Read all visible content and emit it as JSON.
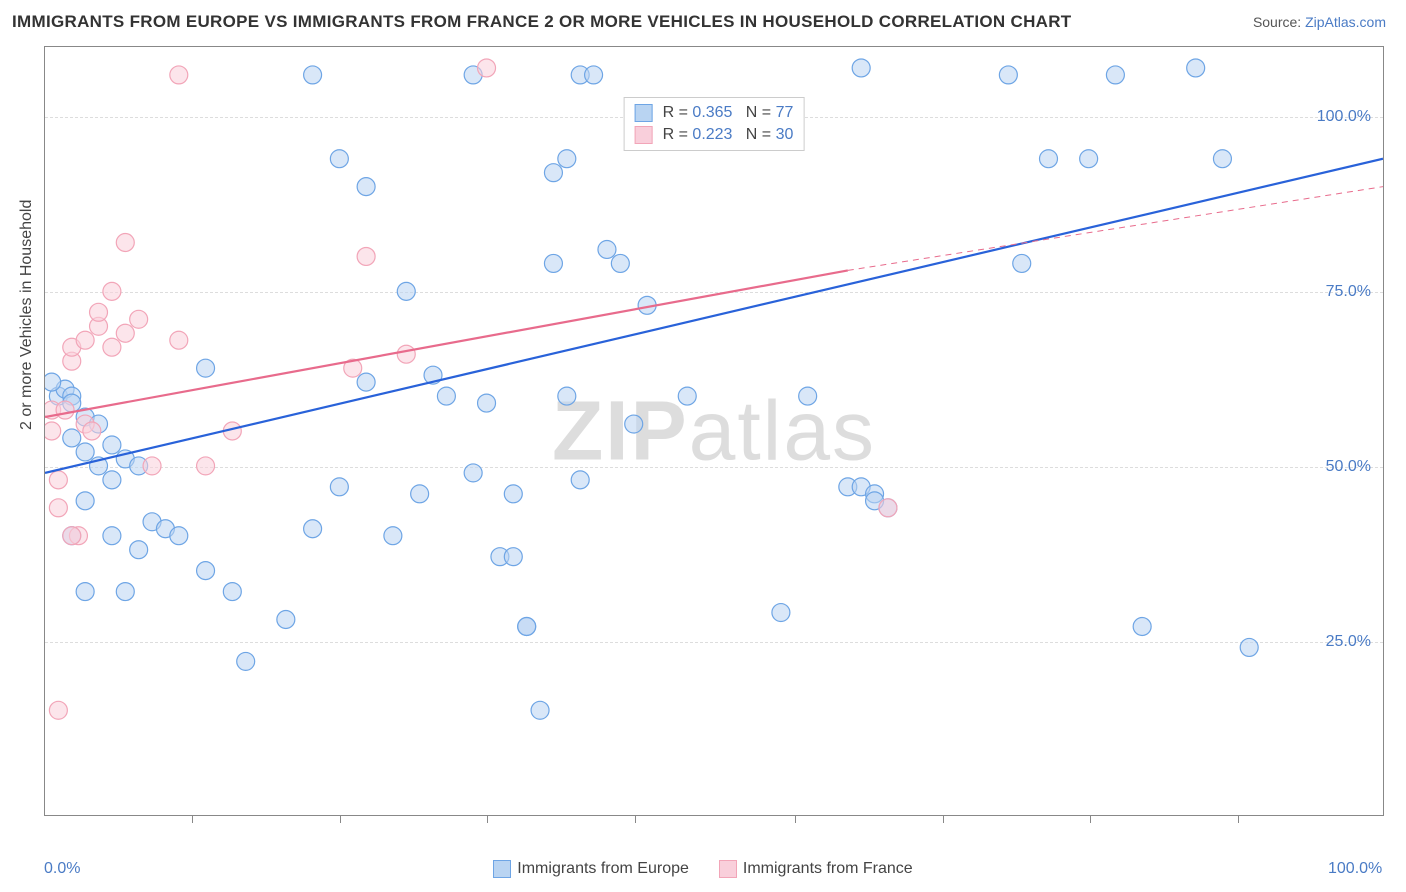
{
  "title": "IMMIGRANTS FROM EUROPE VS IMMIGRANTS FROM FRANCE 2 OR MORE VEHICLES IN HOUSEHOLD CORRELATION CHART",
  "source_label": "Source: ",
  "source_name": "ZipAtlas.com",
  "ylabel": "2 or more Vehicles in Household",
  "watermark": "ZIPatlas",
  "chart": {
    "xlim": [
      0,
      100
    ],
    "ylim": [
      0,
      110
    ],
    "yticks": [
      {
        "v": 25,
        "label": "25.0%"
      },
      {
        "v": 50,
        "label": "50.0%"
      },
      {
        "v": 75,
        "label": "75.0%"
      },
      {
        "v": 100,
        "label": "100.0%"
      }
    ],
    "xticks": [
      {
        "v": 0,
        "label": "0.0%"
      },
      {
        "v": 100,
        "label": "100.0%"
      }
    ],
    "xtick_minor": [
      11,
      22,
      33,
      44,
      56,
      67,
      78,
      89
    ],
    "grid_color": "#dddddd",
    "background": "#ffffff",
    "point_radius": 9,
    "point_opacity": 0.55,
    "line_width": 2.2,
    "series": [
      {
        "name": "Immigrants from Europe",
        "color": "#6ea5e5",
        "line_color": "#2962d9",
        "fill": "#b9d4f2",
        "R": "0.365",
        "N": "77",
        "trend": {
          "x1": 0,
          "y1": 49,
          "x2": 100,
          "y2": 94
        },
        "points": [
          [
            1,
            60
          ],
          [
            1.5,
            61
          ],
          [
            2,
            60
          ],
          [
            2,
            59
          ],
          [
            0.5,
            62
          ],
          [
            2,
            54
          ],
          [
            3,
            52
          ],
          [
            3,
            57
          ],
          [
            4,
            56
          ],
          [
            5,
            53
          ],
          [
            4,
            50
          ],
          [
            6,
            51
          ],
          [
            7,
            50
          ],
          [
            5,
            48
          ],
          [
            3,
            45
          ],
          [
            5,
            40
          ],
          [
            8,
            42
          ],
          [
            7,
            38
          ],
          [
            9,
            41
          ],
          [
            10,
            40
          ],
          [
            2,
            40
          ],
          [
            3,
            32
          ],
          [
            6,
            32
          ],
          [
            12,
            35
          ],
          [
            14,
            32
          ],
          [
            15,
            22
          ],
          [
            18,
            28
          ],
          [
            20,
            41
          ],
          [
            22,
            47
          ],
          [
            24,
            62
          ],
          [
            26,
            40
          ],
          [
            28,
            46
          ],
          [
            27,
            75
          ],
          [
            29,
            63
          ],
          [
            30,
            60
          ],
          [
            32,
            49
          ],
          [
            33,
            59
          ],
          [
            34,
            37
          ],
          [
            35,
            46
          ],
          [
            36,
            27
          ],
          [
            37,
            15
          ],
          [
            38,
            79
          ],
          [
            39,
            60
          ],
          [
            40,
            48
          ],
          [
            38,
            92
          ],
          [
            39,
            94
          ],
          [
            32,
            106
          ],
          [
            40,
            106
          ],
          [
            41,
            106
          ],
          [
            42,
            81
          ],
          [
            35,
            37
          ],
          [
            36,
            27
          ],
          [
            20,
            106
          ],
          [
            22,
            94
          ],
          [
            24,
            90
          ],
          [
            43,
            79
          ],
          [
            44,
            56
          ],
          [
            45,
            73
          ],
          [
            48,
            60
          ],
          [
            55,
            29
          ],
          [
            57,
            60
          ],
          [
            60,
            47
          ],
          [
            61,
            107
          ],
          [
            61,
            47
          ],
          [
            62,
            46
          ],
          [
            63,
            44
          ],
          [
            72,
            106
          ],
          [
            73,
            79
          ],
          [
            75,
            94
          ],
          [
            78,
            94
          ],
          [
            80,
            106
          ],
          [
            82,
            27
          ],
          [
            86,
            107
          ],
          [
            88,
            94
          ],
          [
            90,
            24
          ],
          [
            62,
            45
          ],
          [
            12,
            64
          ]
        ]
      },
      {
        "name": "Immigrants from France",
        "color": "#f2a5b8",
        "line_color": "#e86b8c",
        "fill": "#f9cfdb",
        "R": "0.223",
        "N": "30",
        "trend": {
          "x1": 0,
          "y1": 57,
          "x2": 60,
          "y2": 78
        },
        "trend_ext": {
          "x1": 60,
          "y1": 78,
          "x2": 100,
          "y2": 90
        },
        "points": [
          [
            0.5,
            55
          ],
          [
            0.5,
            58
          ],
          [
            1,
            48
          ],
          [
            1,
            44
          ],
          [
            1.5,
            58
          ],
          [
            2,
            65
          ],
          [
            2,
            67
          ],
          [
            2.5,
            40
          ],
          [
            3,
            56
          ],
          [
            3,
            68
          ],
          [
            3.5,
            55
          ],
          [
            4,
            70
          ],
          [
            4,
            72
          ],
          [
            5,
            67
          ],
          [
            5,
            75
          ],
          [
            6,
            69
          ],
          [
            6,
            82
          ],
          [
            7,
            71
          ],
          [
            8,
            50
          ],
          [
            10,
            106
          ],
          [
            10,
            68
          ],
          [
            12,
            50
          ],
          [
            14,
            55
          ],
          [
            1,
            15
          ],
          [
            2,
            40
          ],
          [
            23,
            64
          ],
          [
            24,
            80
          ],
          [
            27,
            66
          ],
          [
            33,
            107
          ],
          [
            63,
            44
          ]
        ]
      }
    ]
  },
  "legend_bottom": [
    {
      "label": "Immigrants from Europe",
      "fill": "#b9d4f2",
      "border": "#6ea5e5"
    },
    {
      "label": "Immigrants from France",
      "fill": "#f9cfdb",
      "border": "#f2a5b8"
    }
  ]
}
